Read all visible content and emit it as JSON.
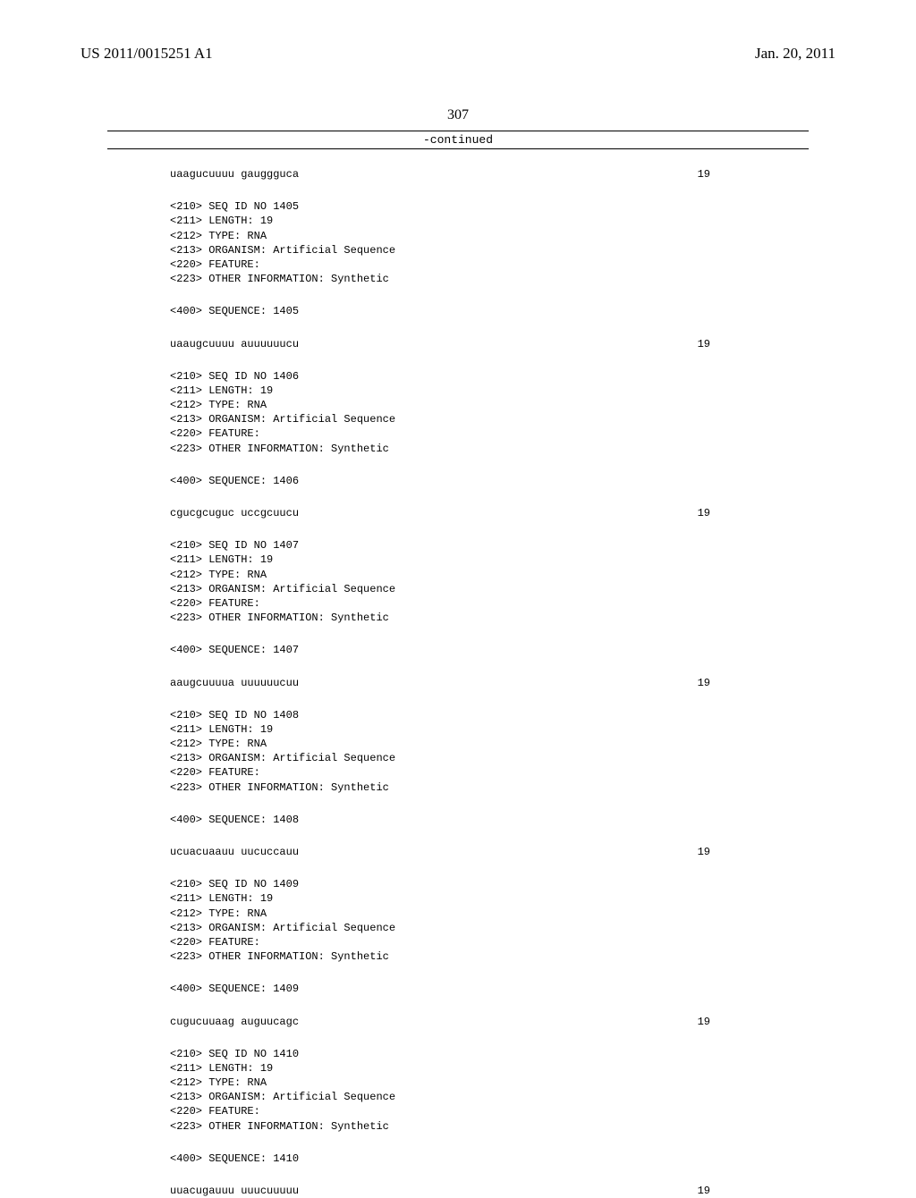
{
  "header": {
    "publication_number": "US 2011/0015251 A1",
    "publication_date": "Jan. 20, 2011"
  },
  "page_number": "307",
  "continued_label": "-continued",
  "sequences": [
    {
      "seq_text": "uaagucuuuu gaugggucа",
      "seq_len": "19",
      "followed_by_block": {
        "lines": [
          "<210> SEQ ID NO 1405",
          "<211> LENGTH: 19",
          "<212> TYPE: RNA",
          "<213> ORGANISM: Artificial Sequence",
          "<220> FEATURE:",
          "<223> OTHER INFORMATION: Synthetic"
        ],
        "sequence_label": "<400> SEQUENCE: 1405"
      }
    },
    {
      "seq_text": "uaaugcuuuu auuuuuucu",
      "seq_len": "19",
      "followed_by_block": {
        "lines": [
          "<210> SEQ ID NO 1406",
          "<211> LENGTH: 19",
          "<212> TYPE: RNA",
          "<213> ORGANISM: Artificial Sequence",
          "<220> FEATURE:",
          "<223> OTHER INFORMATION: Synthetic"
        ],
        "sequence_label": "<400> SEQUENCE: 1406"
      }
    },
    {
      "seq_text": "cgucgcuguc uccgcuucu",
      "seq_len": "19",
      "followed_by_block": {
        "lines": [
          "<210> SEQ ID NO 1407",
          "<211> LENGTH: 19",
          "<212> TYPE: RNA",
          "<213> ORGANISM: Artificial Sequence",
          "<220> FEATURE:",
          "<223> OTHER INFORMATION: Synthetic"
        ],
        "sequence_label": "<400> SEQUENCE: 1407"
      }
    },
    {
      "seq_text": "aaugcuuuua uuuuuucuu",
      "seq_len": "19",
      "followed_by_block": {
        "lines": [
          "<210> SEQ ID NO 1408",
          "<211> LENGTH: 19",
          "<212> TYPE: RNA",
          "<213> ORGANISM: Artificial Sequence",
          "<220> FEATURE:",
          "<223> OTHER INFORMATION: Synthetic"
        ],
        "sequence_label": "<400> SEQUENCE: 1408"
      }
    },
    {
      "seq_text": "ucuacuaauu uucuccauu",
      "seq_len": "19",
      "followed_by_block": {
        "lines": [
          "<210> SEQ ID NO 1409",
          "<211> LENGTH: 19",
          "<212> TYPE: RNA",
          "<213> ORGANISM: Artificial Sequence",
          "<220> FEATURE:",
          "<223> OTHER INFORMATION: Synthetic"
        ],
        "sequence_label": "<400> SEQUENCE: 1409"
      }
    },
    {
      "seq_text": "cugucuuaag auguucagc",
      "seq_len": "19",
      "followed_by_block": {
        "lines": [
          "<210> SEQ ID NO 1410",
          "<211> LENGTH: 19",
          "<212> TYPE: RNA",
          "<213> ORGANISM: Artificial Sequence",
          "<220> FEATURE:",
          "<223> OTHER INFORMATION: Synthetic"
        ],
        "sequence_label": "<400> SEQUENCE: 1410"
      }
    },
    {
      "seq_text": "uuacugauuu uuucuuuuu",
      "seq_len": "19",
      "followed_by_block": null
    }
  ]
}
